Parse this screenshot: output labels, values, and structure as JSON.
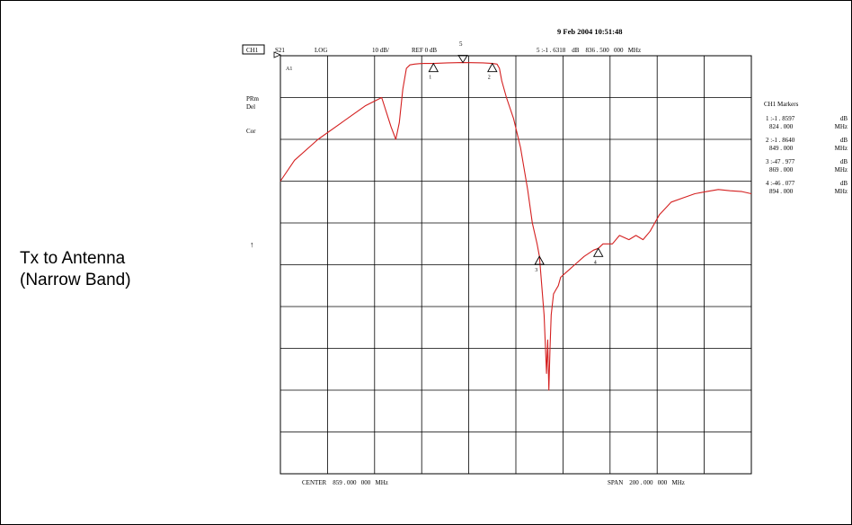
{
  "caption": {
    "line1": "Tx to Antenna",
    "line2": "(Narrow Band)"
  },
  "header": {
    "timestamp": "9 Feb 2004  10:51:48",
    "channel": "CH1",
    "param": "S21",
    "format": "LOG",
    "scale": "10 dB/",
    "ref": "REF 0 dB",
    "marker_readout": "5 :-1 . 6318    dB    836 . 500   000   MHz",
    "marker_number": "5"
  },
  "left_annotations": {
    "a1": "A1",
    "prm": "PRm",
    "del": "Del",
    "cor": "Cor",
    "arrow": "↑"
  },
  "footer": {
    "center": "CENTER    859 . 000   000   MHz",
    "span": "SPAN    200 . 000   000   MHz"
  },
  "marker_panel": {
    "title": "CH1   Markers",
    "entries": [
      {
        "val": "1 :-1  . 8597",
        "unit": "dB",
        "freq": "824  . 000",
        "funit": "MHz"
      },
      {
        "val": "2 :-1  . 8640",
        "unit": "dB",
        "freq": "849  . 000",
        "funit": "MHz"
      },
      {
        "val": "3 :-47  . 977",
        "unit": "dB",
        "freq": "869  . 000",
        "funit": "MHz"
      },
      {
        "val": "4 :-46  . 077",
        "unit": "dB",
        "freq": "894  . 000",
        "funit": "MHz"
      }
    ]
  },
  "chart_data": {
    "type": "line",
    "color": "#d42020",
    "xlim": [
      759,
      959
    ],
    "ylim": [
      -100,
      0
    ],
    "x_divisions": 10,
    "y_divisions": 10,
    "grid": true,
    "markers": [
      {
        "label": "1",
        "x": 824,
        "y": -1.86
      },
      {
        "label": "2",
        "x": 849,
        "y": -1.86
      },
      {
        "label": "3",
        "x": 869,
        "y": -47.98
      },
      {
        "label": "4",
        "x": 894,
        "y": -46.08
      },
      {
        "label": "5",
        "x": 836.5,
        "y": -1.63
      }
    ],
    "series": [
      {
        "x": [
          759,
          765,
          775,
          785,
          795,
          802,
          806,
          808,
          809.5,
          811,
          812.5,
          814,
          816,
          818,
          820,
          824,
          830,
          836.5,
          840,
          845,
          849,
          851,
          852,
          853,
          855,
          858,
          861,
          864,
          866,
          868,
          869,
          871,
          872,
          872.5,
          873,
          873.5,
          874,
          875,
          876,
          877,
          878,
          880,
          884,
          888,
          892,
          894,
          896,
          900,
          903,
          907,
          910,
          913,
          916,
          920,
          925,
          930,
          935,
          940,
          945,
          950,
          955,
          959
        ],
        "y": [
          -30,
          -25,
          -20,
          -16,
          -12,
          -10,
          -17,
          -20,
          -16,
          -8,
          -3,
          -2.2,
          -2.0,
          -1.9,
          -1.85,
          -1.86,
          -1.7,
          -1.63,
          -1.65,
          -1.7,
          -1.86,
          -2.0,
          -3,
          -6,
          -10,
          -15,
          -22,
          -32,
          -40,
          -45,
          -47.98,
          -62,
          -76,
          -68,
          -80,
          -70,
          -62,
          -57,
          -56,
          -55,
          -53,
          -52,
          -50,
          -48,
          -46.5,
          -46.08,
          -45,
          -45,
          -43,
          -44,
          -43,
          -44,
          -42,
          -38,
          -35,
          -34,
          -33,
          -32.5,
          -32,
          -32.3,
          -32.5,
          -33
        ]
      }
    ]
  }
}
